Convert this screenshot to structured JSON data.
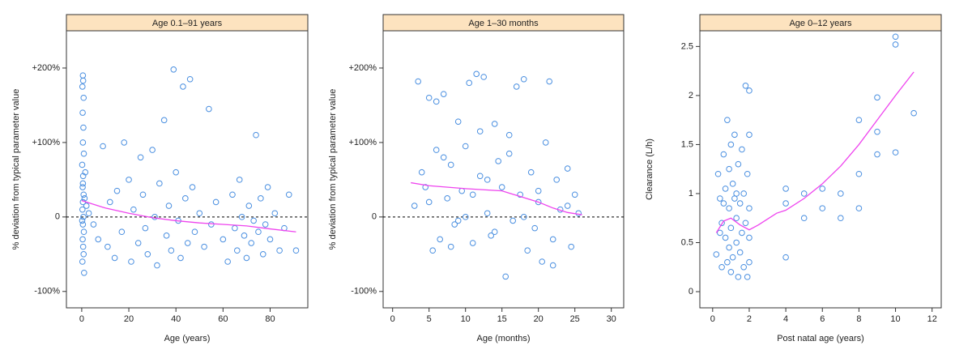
{
  "chart_data": [
    {
      "type": "scatter",
      "title": "Age 0.1–91 years",
      "x_label": "Age (years)",
      "y_label": "% deviation  from typical parameter value",
      "xlim": [
        -6.5,
        96
      ],
      "ylim": [
        -122,
        250
      ],
      "xticks": [
        0,
        20,
        40,
        60,
        80
      ],
      "yticks": [
        {
          "value": -100,
          "label": "-100%"
        },
        0,
        {
          "value": 100,
          "label": "+100%"
        },
        {
          "value": 200,
          "label": "+200%"
        }
      ],
      "hline": 0,
      "series": [
        {
          "mode": "markers",
          "color": "#4a8fe0",
          "x": [
            0.5,
            0.6,
            0.3,
            0.8,
            0.4,
            0.7,
            0.5,
            0.9,
            0.2,
            0.6,
            0.4,
            0.8,
            0.5,
            0.3,
            0.7,
            0.5,
            0.9,
            0.4,
            0.6,
            0.8,
            0.3,
            1,
            0.5,
            1.2,
            0.2,
            1.5,
            2,
            3,
            5,
            7,
            9,
            11,
            12,
            14,
            15,
            17,
            18,
            20,
            21,
            22,
            24,
            25,
            26,
            27,
            28,
            30,
            31,
            32,
            33,
            35,
            36,
            37,
            38,
            39,
            40,
            41,
            42,
            43,
            44,
            45,
            46,
            47,
            48,
            50,
            52,
            54,
            55,
            57,
            60,
            62,
            64,
            65,
            66,
            67,
            68,
            69,
            70,
            71,
            72,
            73,
            74,
            75,
            76,
            77,
            78,
            79,
            80,
            82,
            84,
            86,
            88,
            91
          ],
          "values": [
            190,
            183,
            175,
            160,
            140,
            120,
            100,
            85,
            70,
            55,
            40,
            30,
            20,
            10,
            0,
            -10,
            -20,
            -30,
            -40,
            -50,
            -60,
            -75,
            45,
            25,
            -5,
            60,
            15,
            5,
            -10,
            -30,
            95,
            -40,
            20,
            -55,
            35,
            -20,
            100,
            50,
            -60,
            10,
            -35,
            80,
            30,
            -15,
            -50,
            90,
            0,
            -65,
            45,
            130,
            -25,
            15,
            -45,
            198,
            60,
            -5,
            -55,
            175,
            25,
            -35,
            185,
            40,
            -20,
            5,
            -40,
            145,
            -10,
            20,
            -30,
            -60,
            30,
            -15,
            -45,
            50,
            0,
            -25,
            -55,
            15,
            -35,
            -5,
            110,
            -20,
            25,
            -50,
            -10,
            40,
            -30,
            5,
            -45,
            -15,
            30,
            -45
          ]
        },
        {
          "mode": "line",
          "color": "#ee44ee",
          "x": [
            0,
            10,
            20,
            30,
            40,
            50,
            60,
            70,
            80,
            91
          ],
          "values": [
            22,
            12,
            5,
            -1,
            -5,
            -8,
            -10,
            -12,
            -16,
            -20
          ]
        }
      ]
    },
    {
      "type": "scatter",
      "title": "Age 1–30 months",
      "x_label": "Age (months)",
      "y_label": "% deviation  from typical parameter value",
      "xlim": [
        -1.3,
        31.7
      ],
      "ylim": [
        -122,
        250
      ],
      "xticks": [
        0,
        5,
        10,
        15,
        20,
        25,
        30
      ],
      "yticks": [
        {
          "value": -100,
          "label": "-100%"
        },
        0,
        {
          "value": 100,
          "label": "+100%"
        },
        {
          "value": 200,
          "label": "+200%"
        }
      ],
      "hline": 0,
      "series": [
        {
          "mode": "markers",
          "color": "#4a8fe0",
          "x": [
            3,
            3.5,
            4,
            4.5,
            5,
            5.5,
            6,
            6.5,
            7,
            7.5,
            8,
            8.5,
            9,
            9.5,
            10,
            10.5,
            11,
            11.5,
            12,
            12.5,
            13,
            13.5,
            14,
            14.5,
            15,
            15.5,
            16,
            16.5,
            17,
            17.5,
            18,
            18.5,
            19,
            19.5,
            20,
            20.5,
            21,
            21.5,
            22,
            22.5,
            23,
            24,
            24.5,
            25,
            25.5,
            6,
            8,
            10,
            12,
            14,
            16,
            18,
            20,
            22,
            24,
            13,
            11,
            9,
            7,
            5
          ],
          "values": [
            15,
            182,
            60,
            40,
            160,
            -45,
            155,
            -30,
            165,
            25,
            70,
            -10,
            128,
            35,
            95,
            180,
            -35,
            192,
            55,
            188,
            5,
            -25,
            125,
            75,
            40,
            -80,
            110,
            -5,
            175,
            30,
            185,
            -45,
            60,
            -15,
            20,
            -60,
            100,
            182,
            -30,
            50,
            10,
            65,
            -40,
            30,
            5,
            90,
            -40,
            0,
            115,
            -20,
            85,
            0,
            35,
            -65,
            15,
            50,
            30,
            -5,
            80,
            20
          ]
        },
        {
          "mode": "line",
          "color": "#ee44ee",
          "x": [
            2.5,
            5,
            10,
            15,
            20,
            22,
            24,
            26
          ],
          "values": [
            46,
            42,
            38,
            35,
            20,
            12,
            6,
            3
          ]
        }
      ]
    },
    {
      "type": "scatter",
      "title": "Age 0–12 years",
      "x_label": "Post natal age (years)",
      "y_label": "Clearance (L/h)",
      "xlim": [
        -0.7,
        12.5
      ],
      "ylim": [
        -0.165,
        2.66
      ],
      "xticks": [
        0,
        2,
        4,
        6,
        8,
        10,
        12
      ],
      "yticks": [
        0,
        0.5,
        1,
        1.5,
        2,
        2.5
      ],
      "series": [
        {
          "mode": "markers",
          "color": "#4a8fe0",
          "x": [
            0.2,
            0.3,
            0.4,
            0.5,
            0.5,
            0.6,
            0.7,
            0.7,
            0.8,
            0.8,
            0.9,
            0.9,
            1,
            1,
            1,
            1.1,
            1.1,
            1.2,
            1.2,
            1.3,
            1.3,
            1.4,
            1.4,
            1.5,
            1.5,
            1.6,
            1.6,
            1.7,
            1.7,
            1.8,
            1.8,
            1.9,
            1.9,
            2,
            2,
            2,
            2,
            2,
            0.6,
            0.4,
            1.3,
            0.9,
            4,
            4,
            4,
            5,
            5,
            6,
            6,
            7,
            7,
            8,
            8,
            8,
            9,
            9,
            9,
            10,
            10,
            10,
            11
          ],
          "values": [
            0.38,
            1.2,
            0.95,
            0.7,
            0.25,
            1.4,
            0.55,
            1.05,
            0.3,
            1.75,
            0.85,
            0.45,
            1.5,
            0.65,
            0.2,
            1.1,
            0.35,
            0.95,
            1.6,
            0.5,
            0.75,
            0.15,
            1.3,
            0.9,
            0.4,
            1.45,
            0.6,
            0.25,
            1.0,
            2.1,
            0.7,
            0.15,
            1.2,
            2.05,
            0.55,
            0.3,
            1.6,
            0.85,
            0.9,
            0.6,
            1.0,
            1.25,
            1.05,
            0.35,
            0.9,
            1.0,
            0.75,
            1.05,
            0.85,
            0.75,
            1.0,
            1.75,
            1.2,
            0.85,
            1.98,
            1.63,
            1.4,
            2.6,
            2.52,
            1.42,
            1.82
          ]
        },
        {
          "mode": "line",
          "color": "#ee44ee",
          "x": [
            0.2,
            0.6,
            1,
            1.5,
            2,
            2.5,
            3,
            3.5,
            4,
            5,
            6,
            7,
            8,
            9,
            10,
            11
          ],
          "values": [
            0.6,
            0.72,
            0.75,
            0.68,
            0.63,
            0.68,
            0.74,
            0.8,
            0.83,
            0.95,
            1.1,
            1.28,
            1.5,
            1.75,
            2.0,
            2.24
          ]
        }
      ]
    }
  ]
}
